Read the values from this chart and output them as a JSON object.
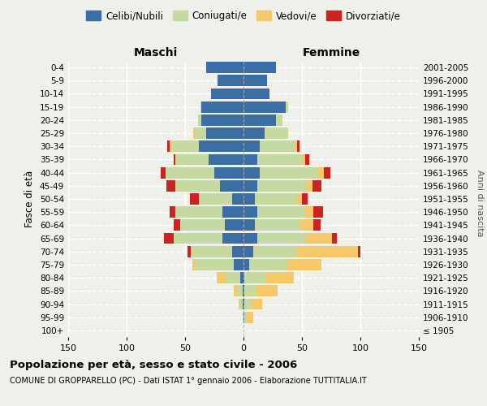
{
  "age_groups": [
    "100+",
    "95-99",
    "90-94",
    "85-89",
    "80-84",
    "75-79",
    "70-74",
    "65-69",
    "60-64",
    "55-59",
    "50-54",
    "45-49",
    "40-44",
    "35-39",
    "30-34",
    "25-29",
    "20-24",
    "15-19",
    "10-14",
    "5-9",
    "0-4"
  ],
  "birth_years": [
    "≤ 1905",
    "1906-1910",
    "1911-1915",
    "1916-1920",
    "1921-1925",
    "1926-1930",
    "1931-1935",
    "1936-1940",
    "1941-1945",
    "1946-1950",
    "1951-1955",
    "1956-1960",
    "1961-1965",
    "1966-1970",
    "1971-1975",
    "1976-1980",
    "1981-1985",
    "1986-1990",
    "1991-1995",
    "1996-2000",
    "2001-2005"
  ],
  "maschi": {
    "celibi": [
      0,
      0,
      1,
      1,
      3,
      8,
      10,
      18,
      16,
      18,
      10,
      20,
      25,
      30,
      38,
      32,
      36,
      36,
      28,
      22,
      32
    ],
    "coniugati": [
      0,
      1,
      3,
      5,
      12,
      32,
      35,
      42,
      38,
      40,
      28,
      38,
      42,
      28,
      24,
      10,
      3,
      1,
      0,
      0,
      0
    ],
    "vedovi": [
      0,
      0,
      0,
      2,
      8,
      4,
      0,
      0,
      0,
      0,
      0,
      0,
      0,
      0,
      1,
      1,
      0,
      0,
      0,
      0,
      0
    ],
    "divorziati": [
      0,
      0,
      0,
      0,
      0,
      0,
      3,
      8,
      6,
      5,
      8,
      8,
      4,
      2,
      2,
      0,
      0,
      0,
      0,
      0,
      0
    ]
  },
  "femmine": {
    "nubili": [
      0,
      1,
      1,
      1,
      1,
      5,
      8,
      12,
      10,
      12,
      10,
      12,
      14,
      12,
      14,
      18,
      28,
      36,
      22,
      20,
      28
    ],
    "coniugate": [
      0,
      2,
      5,
      10,
      18,
      32,
      38,
      42,
      38,
      40,
      35,
      42,
      50,
      38,
      30,
      20,
      5,
      2,
      0,
      0,
      0
    ],
    "vedove": [
      0,
      5,
      10,
      18,
      24,
      30,
      52,
      22,
      12,
      8,
      5,
      5,
      5,
      3,
      2,
      0,
      0,
      0,
      0,
      0,
      0
    ],
    "divorziate": [
      0,
      0,
      0,
      0,
      0,
      0,
      2,
      4,
      6,
      8,
      5,
      8,
      5,
      3,
      2,
      0,
      0,
      0,
      0,
      0,
      0
    ]
  },
  "colors": {
    "celibi": "#3A6EA5",
    "coniugati": "#C5D9A0",
    "vedovi": "#F5C96A",
    "divorziati": "#CC2222"
  },
  "xlim": 150,
  "title": "Popolazione per età, sesso e stato civile - 2006",
  "subtitle": "COMUNE DI GROPPARELLO (PC) - Dati ISTAT 1° gennaio 2006 - Elaborazione TUTTITALIA.IT",
  "ylabel": "Fasce di età",
  "right_label": "Anni di nascita",
  "background_color": "#f0f0eb"
}
